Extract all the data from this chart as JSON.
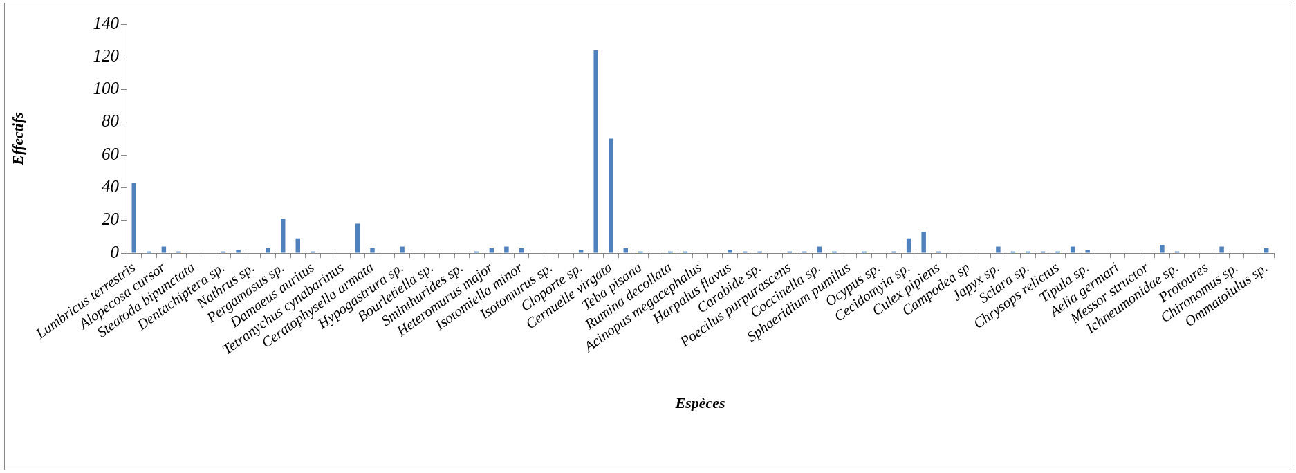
{
  "chart_data": {
    "type": "bar",
    "xlabel": "Espèces",
    "ylabel": "Effectifs",
    "categories": [
      "Lumbricus terrestris",
      null,
      "Alopecosa cursor",
      null,
      "Steatoda bipunctata",
      null,
      "Dentachiptera sp.",
      null,
      "Nathrus sp.",
      null,
      "Pergamasus sp.",
      null,
      "Damaeus auritus",
      null,
      "Tetranychus cynabarinus",
      null,
      "Ceratophysella armata",
      null,
      "Hypogastrura sp.",
      null,
      "Bourletiella sp.",
      null,
      "Sminthurides sp.",
      null,
      "Heteromurus major",
      null,
      "Isotomiella minor",
      null,
      "Isotomurus sp.",
      null,
      "Cloporte sp.",
      null,
      "Cernuelle virgata",
      null,
      "Teba pisana",
      null,
      "Rumina decollata",
      null,
      "Acinopus megacephalus",
      null,
      "Harpalus flavus",
      null,
      "Carabide sp.",
      null,
      "Poecilus purpurascens",
      null,
      "Coccinella sp.",
      null,
      "Sphaeridium pumilus",
      null,
      "Ocypus sp.",
      null,
      "Cecidomyia sp.",
      null,
      "Culex pipiens",
      null,
      "Campodea sp",
      null,
      "Japyx sp.",
      null,
      "Sciara sp.",
      null,
      "Chrysops relictus",
      null,
      "Tipula sp.",
      null,
      "Aelia germari",
      null,
      "Messor structor",
      null,
      "Ichneumonidae sp.",
      null,
      "Protoures",
      null,
      "Chironomus sp.",
      null,
      "Ommatoiulus sp."
    ],
    "values": [
      43,
      1,
      4,
      1,
      0,
      0,
      1,
      2,
      0,
      3,
      21,
      9,
      1,
      0,
      0,
      18,
      3,
      0,
      4,
      0,
      0,
      0,
      0,
      1,
      3,
      4,
      3,
      0,
      0,
      0,
      2,
      124,
      70,
      3,
      1,
      0,
      1,
      1,
      0,
      0,
      2,
      1,
      1,
      0,
      1,
      1,
      4,
      1,
      0,
      1,
      0,
      1,
      9,
      13,
      1,
      0,
      0,
      0,
      4,
      1,
      1,
      1,
      1,
      4,
      2,
      0,
      0,
      0,
      0,
      5,
      1,
      0,
      0,
      4,
      0,
      0,
      3
    ],
    "color": "#4f81bd",
    "ylim": [
      0,
      140
    ],
    "yticks": [
      0,
      20,
      40,
      60,
      80,
      100,
      120,
      140
    ],
    "grid": false
  }
}
